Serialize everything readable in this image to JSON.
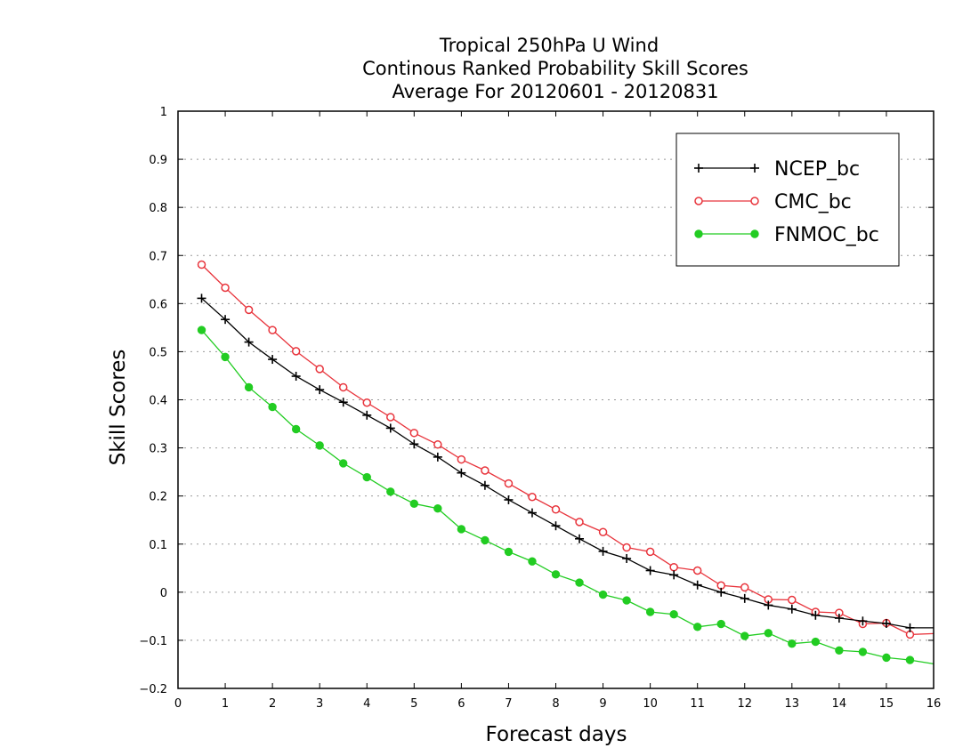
{
  "chart_data": {
    "type": "line",
    "title": [
      "Tropical 250hPa U Wind",
      "Continous Ranked Probability Skill Scores",
      "Average For 20120601 - 20120831"
    ],
    "xlabel": "Forecast days",
    "ylabel": "Skill Scores",
    "xlim": [
      0,
      16
    ],
    "ylim": [
      -0.2,
      1
    ],
    "xticks": [
      0,
      1,
      2,
      3,
      4,
      5,
      6,
      7,
      8,
      9,
      10,
      11,
      12,
      13,
      14,
      15,
      16
    ],
    "yticks": [
      -0.2,
      -0.1,
      0,
      0.1,
      0.2,
      0.3,
      0.4,
      0.5,
      0.6,
      0.7,
      0.8,
      0.9,
      1
    ],
    "ytick_labels": [
      "−0.2",
      "−0.1",
      "0",
      "0.1",
      "0.2",
      "0.3",
      "0.4",
      "0.5",
      "0.6",
      "0.7",
      "0.8",
      "0.9",
      "1"
    ],
    "grid": "horizontal dotted",
    "legend_position": "top-right",
    "x": [
      0.5,
      1,
      1.5,
      2,
      2.5,
      3,
      3.5,
      4,
      4.5,
      5,
      5.5,
      6,
      6.5,
      7,
      7.5,
      8,
      8.5,
      9,
      9.5,
      10,
      10.5,
      11,
      11.5,
      12,
      12.5,
      13,
      13.5,
      14,
      14.5,
      15,
      15.5,
      16
    ],
    "series": [
      {
        "name": "NCEP_bc",
        "color": "#000000",
        "marker": "plus",
        "values": [
          0.611,
          0.567,
          0.52,
          0.484,
          0.449,
          0.421,
          0.395,
          0.368,
          0.341,
          0.308,
          0.281,
          0.248,
          0.222,
          0.192,
          0.165,
          0.138,
          0.111,
          0.085,
          0.07,
          0.045,
          0.036,
          0.015,
          0.0,
          -0.013,
          -0.027,
          -0.035,
          -0.048,
          -0.054,
          -0.06,
          -0.065,
          -0.074,
          -0.074
        ]
      },
      {
        "name": "CMC_bc",
        "color": "#e8343c",
        "marker": "open-circle",
        "values": [
          0.681,
          0.633,
          0.587,
          0.545,
          0.501,
          0.464,
          0.426,
          0.394,
          0.364,
          0.331,
          0.307,
          0.276,
          0.253,
          0.226,
          0.198,
          0.172,
          0.146,
          0.125,
          0.093,
          0.084,
          0.052,
          0.045,
          0.014,
          0.01,
          -0.015,
          -0.016,
          -0.041,
          -0.043,
          -0.066,
          -0.064,
          -0.088,
          -0.086
        ]
      },
      {
        "name": "FNMOC_bc",
        "color": "#22cc22",
        "marker": "filled-circle",
        "values": [
          0.545,
          0.489,
          0.426,
          0.385,
          0.339,
          0.305,
          0.268,
          0.239,
          0.209,
          0.184,
          0.174,
          0.131,
          0.108,
          0.084,
          0.064,
          0.037,
          0.02,
          -0.005,
          -0.017,
          -0.041,
          -0.046,
          -0.072,
          -0.066,
          -0.091,
          -0.085,
          -0.107,
          -0.103,
          -0.121,
          -0.124,
          -0.136,
          -0.141,
          -0.149
        ]
      }
    ]
  }
}
